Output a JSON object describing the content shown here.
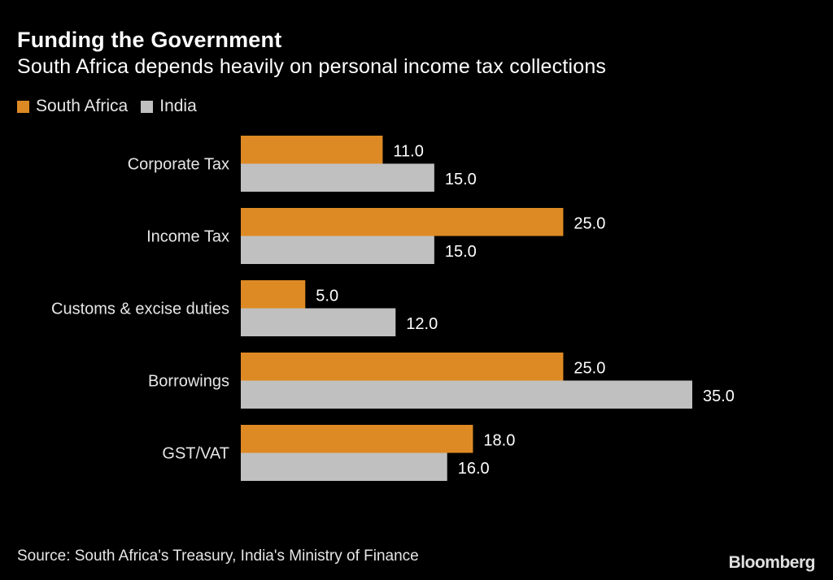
{
  "chart_data": {
    "type": "bar",
    "orientation": "horizontal",
    "title": "Funding the Government",
    "subtitle": "South Africa depends heavily on personal income tax collections",
    "categories": [
      "Corporate Tax",
      "Income Tax",
      "Customs & excise duties",
      "Borrowings",
      "GST/VAT"
    ],
    "series": [
      {
        "name": "South Africa",
        "color": "#de8a24",
        "values": [
          11.0,
          25.0,
          5.0,
          25.0,
          18.0
        ]
      },
      {
        "name": "India",
        "color": "#c0c0c0",
        "values": [
          15.0,
          15.0,
          12.0,
          35.0,
          16.0
        ]
      }
    ],
    "xlim": [
      0,
      35
    ],
    "grid": false,
    "legend_position": "top-left",
    "data_labels": true,
    "source": "Source: South Africa's Treasury, India's Ministry of Finance",
    "logo": "Bloomberg"
  }
}
